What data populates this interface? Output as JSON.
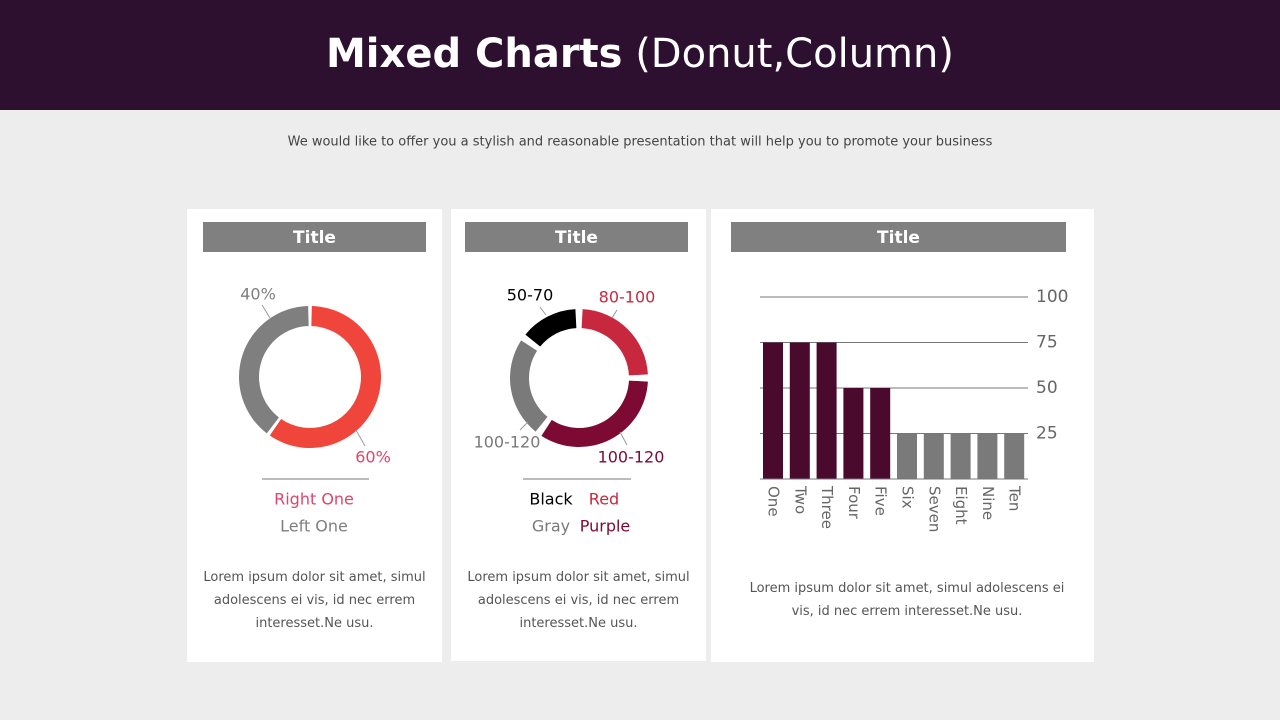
{
  "header": {
    "title": "Mixed Charts",
    "title_suffix": "(Donut,Column)",
    "subtitle": "We would like to offer you a stylish and reasonable presentation that will help you to promote your business"
  },
  "chart_data": [
    {
      "type": "donut",
      "title": "Title",
      "categories": [
        "Right One",
        "Left One"
      ],
      "values": [
        60,
        40
      ],
      "value_labels": [
        "60%",
        "40%"
      ],
      "colors": [
        "#f0453a",
        "#7f7f7f"
      ],
      "label_colors": [
        "#e0456a",
        "#7f7f7f"
      ],
      "legend": true
    },
    {
      "type": "donut",
      "title": "Title",
      "categories": [
        "Red",
        "Purple",
        "Gray",
        "Black"
      ],
      "values": [
        25,
        35,
        25,
        15
      ],
      "labels": [
        "80-100",
        "100-120",
        "100-120",
        "50-70"
      ],
      "colors": [
        "#c8283e",
        "#7d0a33",
        "#7a7a7a",
        "#000000"
      ],
      "label_colors": [
        "#c8283e",
        "#7d0a33",
        "#7a7a7a",
        "#000000"
      ],
      "legend": true
    },
    {
      "type": "bar",
      "title": "Title",
      "categories": [
        "One",
        "Two",
        "Three",
        "Four",
        "Five",
        "Six",
        "Seven",
        "Eight",
        "Nine",
        "Ten"
      ],
      "values": [
        75,
        75,
        75,
        50,
        50,
        25,
        25,
        25,
        25,
        25
      ],
      "colors": [
        "#4a0a2e",
        "#4a0a2e",
        "#4a0a2e",
        "#4a0a2e",
        "#4a0a2e",
        "#7a7a7a",
        "#7a7a7a",
        "#7a7a7a",
        "#7a7a7a",
        "#7a7a7a"
      ],
      "ylim": [
        0,
        100
      ],
      "yticks": [
        25,
        50,
        75,
        100
      ],
      "grid": true
    }
  ],
  "panels": [
    {
      "body": "Lorem ipsum dolor sit amet, simul adolescens ei vis, id nec errem interesset.Ne usu."
    },
    {
      "body": "Lorem ipsum dolor sit amet, simul adolescens ei vis, id nec errem interesset.Ne usu."
    },
    {
      "body": "Lorem ipsum dolor sit amet, simul adolescens ei vis, id nec errem interesset.Ne usu."
    }
  ]
}
